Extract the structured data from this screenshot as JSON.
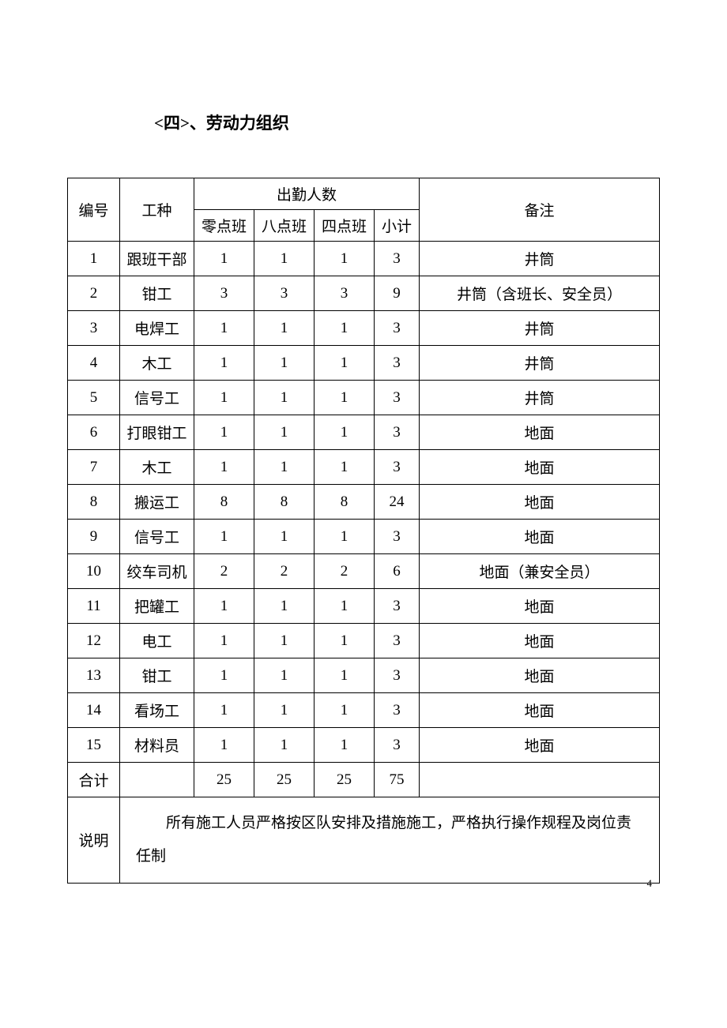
{
  "title": "<四>、劳动力组织",
  "table": {
    "headers": {
      "number": "编号",
      "workType": "工种",
      "attendance": "出勤人数",
      "note": "备注",
      "shift0": "零点班",
      "shift8": "八点班",
      "shift4": "四点班",
      "subtotal": "小计"
    },
    "rows": [
      {
        "num": "1",
        "type": "跟班干部",
        "s0": "1",
        "s8": "1",
        "s4": "1",
        "sub": "3",
        "note": "井筒"
      },
      {
        "num": "2",
        "type": "钳工",
        "s0": "3",
        "s8": "3",
        "s4": "3",
        "sub": "9",
        "note": "井筒（含班长、安全员）"
      },
      {
        "num": "3",
        "type": "电焊工",
        "s0": "1",
        "s8": "1",
        "s4": "1",
        "sub": "3",
        "note": "井筒"
      },
      {
        "num": "4",
        "type": "木工",
        "s0": "1",
        "s8": "1",
        "s4": "1",
        "sub": "3",
        "note": "井筒"
      },
      {
        "num": "5",
        "type": "信号工",
        "s0": "1",
        "s8": "1",
        "s4": "1",
        "sub": "3",
        "note": "井筒"
      },
      {
        "num": "6",
        "type": "打眼钳工",
        "s0": "1",
        "s8": "1",
        "s4": "1",
        "sub": "3",
        "note": "地面"
      },
      {
        "num": "7",
        "type": "木工",
        "s0": "1",
        "s8": "1",
        "s4": "1",
        "sub": "3",
        "note": "地面"
      },
      {
        "num": "8",
        "type": "搬运工",
        "s0": "8",
        "s8": "8",
        "s4": "8",
        "sub": "24",
        "note": "地面"
      },
      {
        "num": "9",
        "type": "信号工",
        "s0": "1",
        "s8": "1",
        "s4": "1",
        "sub": "3",
        "note": "地面"
      },
      {
        "num": "10",
        "type": "绞车司机",
        "s0": "2",
        "s8": "2",
        "s4": "2",
        "sub": "6",
        "note": "地面（兼安全员）"
      },
      {
        "num": "11",
        "type": "把罐工",
        "s0": "1",
        "s8": "1",
        "s4": "1",
        "sub": "3",
        "note": "地面"
      },
      {
        "num": "12",
        "type": "电工",
        "s0": "1",
        "s8": "1",
        "s4": "1",
        "sub": "3",
        "note": "地面"
      },
      {
        "num": "13",
        "type": "钳工",
        "s0": "1",
        "s8": "1",
        "s4": "1",
        "sub": "3",
        "note": "地面"
      },
      {
        "num": "14",
        "type": "看场工",
        "s0": "1",
        "s8": "1",
        "s4": "1",
        "sub": "3",
        "note": "地面"
      },
      {
        "num": "15",
        "type": "材料员",
        "s0": "1",
        "s8": "1",
        "s4": "1",
        "sub": "3",
        "note": "地面"
      }
    ],
    "total": {
      "label": "合计",
      "type": "",
      "s0": "25",
      "s8": "25",
      "s4": "25",
      "sub": "75",
      "note": ""
    },
    "noteRow": {
      "label": "说明",
      "content": "所有施工人员严格按区队安排及措施施工，严格执行操作规程及岗位责任制"
    }
  },
  "pageNumber": "4"
}
